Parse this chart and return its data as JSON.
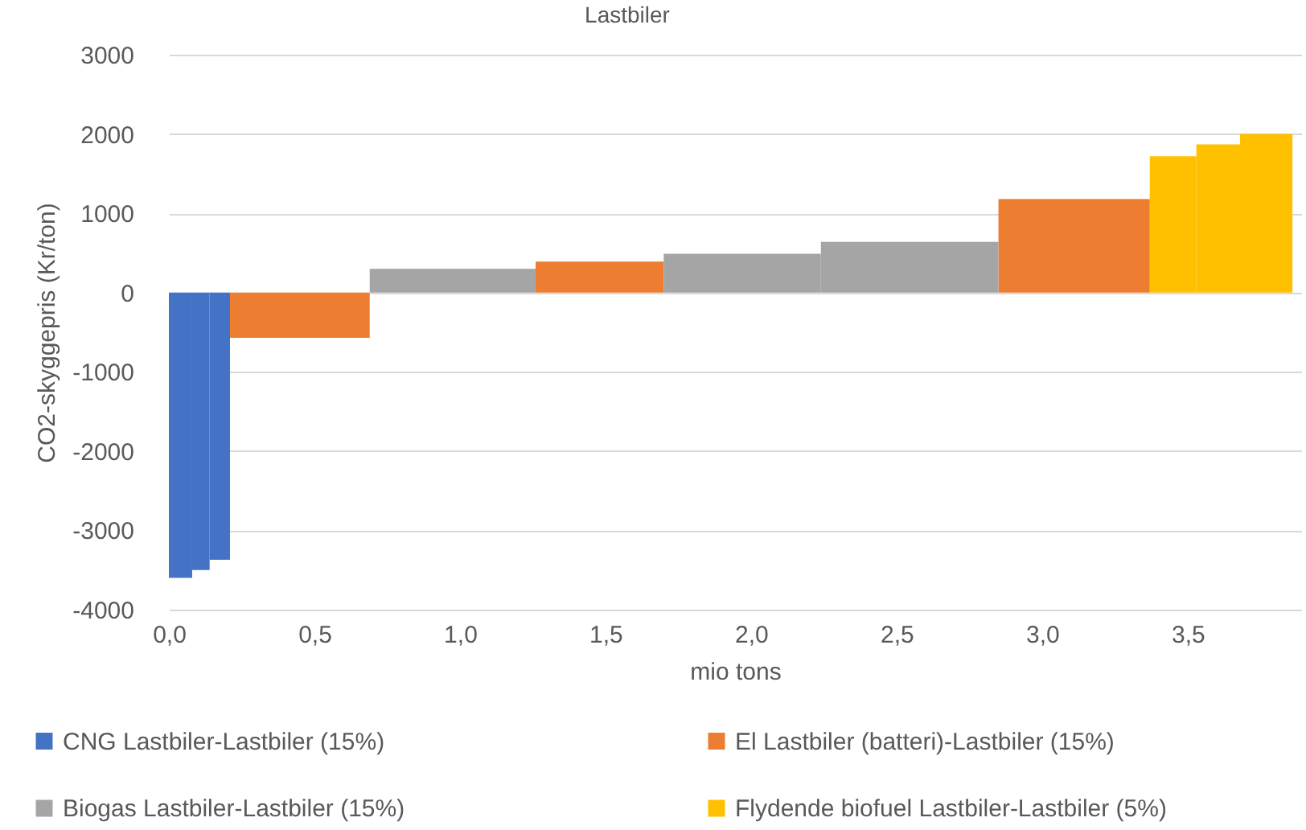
{
  "chart_data": {
    "type": "histogram",
    "title": "Lastbiler",
    "xlabel": "mio tons",
    "ylabel": "CO2-skyggepris (Kr/ton)",
    "bins": [
      0,
      0.08,
      0.14,
      0.21,
      0.69,
      1.26,
      1.7,
      2.24,
      2.85,
      3.37,
      3.53,
      3.68,
      3.86
    ],
    "series": [
      {
        "name": "CNG Lastbiler-Lastbiler (15%)",
        "color": "#4472c4",
        "values": [
          -3600,
          -3500,
          -3370,
          null,
          null,
          null,
          null,
          null,
          null,
          null,
          null,
          null
        ]
      },
      {
        "name": "El Lastbiler (batteri)-Lastbiler (15%)",
        "color": "#ed7d31",
        "values": [
          null,
          null,
          null,
          -570,
          null,
          390,
          null,
          null,
          1180,
          null,
          null,
          null
        ]
      },
      {
        "name": "Biogas Lastbiler-Lastbiler (15%)",
        "color": "#a5a5a5",
        "values": [
          null,
          null,
          null,
          null,
          300,
          null,
          490,
          640,
          null,
          null,
          null,
          null
        ]
      },
      {
        "name": "Flydende biofuel Lastbiler-Lastbiler (5%)",
        "color": "#ffc000",
        "values": [
          null,
          null,
          null,
          null,
          null,
          null,
          null,
          null,
          null,
          1720,
          1870,
          2000
        ]
      }
    ],
    "xlim": [
      0,
      3.89
    ],
    "xticks": [
      {
        "value": 0,
        "label": "0,0"
      },
      {
        "value": 0.5,
        "label": "0,5"
      },
      {
        "value": 1,
        "label": "1,0"
      },
      {
        "value": 1.5,
        "label": "1,5"
      },
      {
        "value": 2,
        "label": "2,0"
      },
      {
        "value": 2.5,
        "label": "2,5"
      },
      {
        "value": 3,
        "label": "3,0"
      },
      {
        "value": 3.5,
        "label": "3,5"
      }
    ],
    "ylim": [
      -4000,
      3000
    ],
    "yticks": [
      -4000,
      -3000,
      -2000,
      -1000,
      0,
      1000,
      2000,
      3000
    ],
    "grid": "y",
    "legend": "bottom"
  }
}
